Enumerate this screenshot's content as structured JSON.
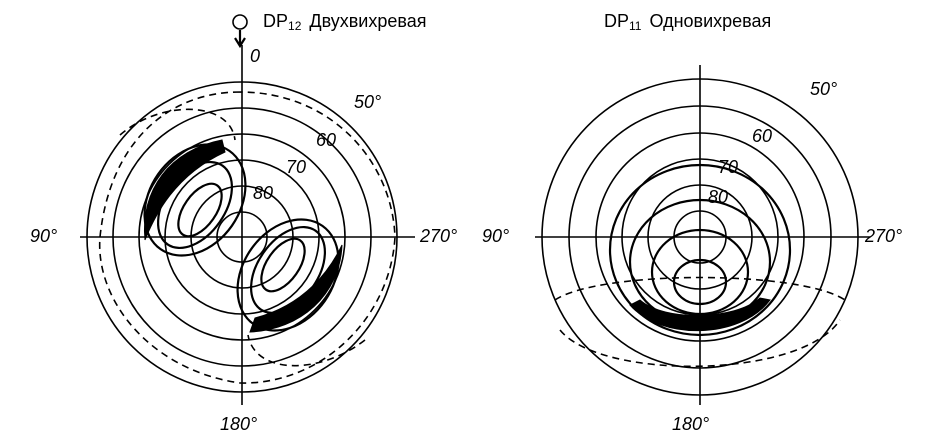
{
  "left": {
    "title": {
      "main": "DP",
      "sub": "12",
      "name": "Двухвихревая"
    },
    "labels": {
      "top": "0",
      "ring50": "50°",
      "ring60": "60",
      "ring70": "70",
      "ring80": "80",
      "left": "90°",
      "right": "270°",
      "bottom": "180°"
    }
  },
  "right": {
    "title": {
      "main": "DP",
      "sub": "11",
      "name": "Одновихревая"
    },
    "labels": {
      "ring50": "50°",
      "ring60": "60",
      "ring70": "70",
      "ring80": "80",
      "left": "90°",
      "right": "270°",
      "bottom": "180°"
    }
  }
}
